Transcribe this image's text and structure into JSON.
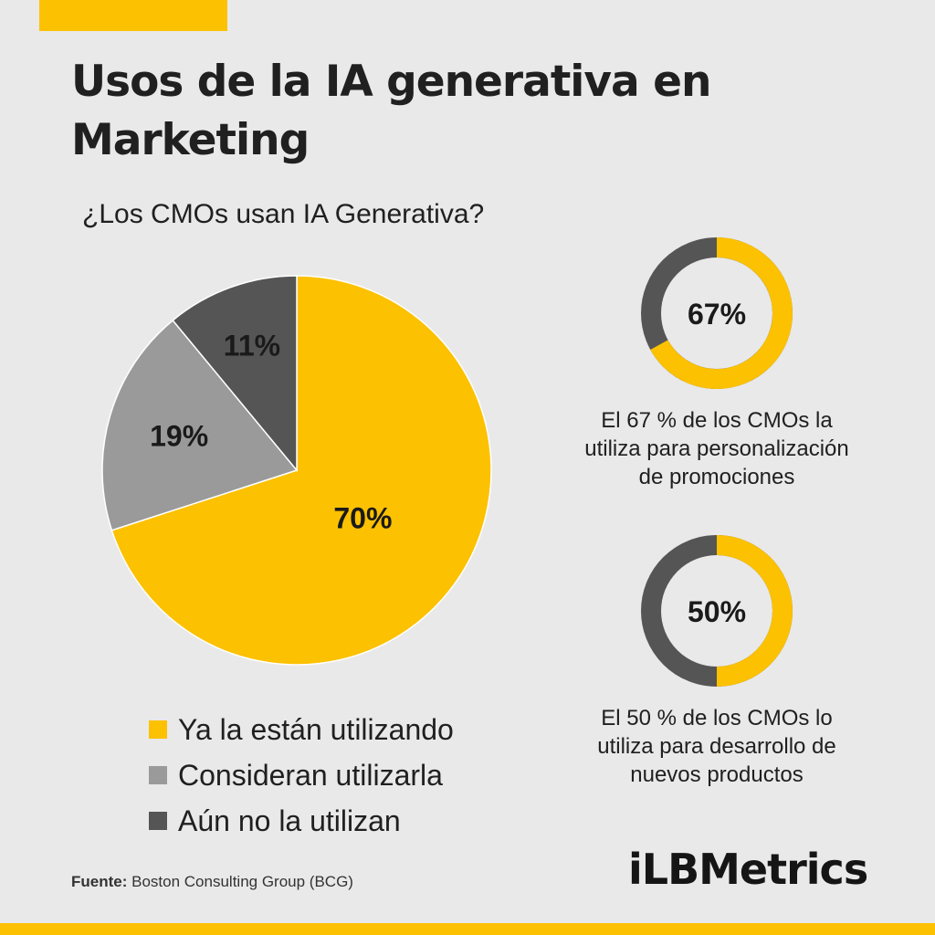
{
  "title": "Usos de la IA generativa en Marketing",
  "question": "¿Los CMOs usan IA Generativa?",
  "colors": {
    "accent": "#fcc100",
    "gray_light": "#9a9a9a",
    "gray_dark": "#555555",
    "background": "#e9e9e9"
  },
  "chart_data": [
    {
      "type": "pie",
      "title": "¿Los CMOs usan IA Generativa?",
      "unit": "%",
      "slices": [
        {
          "label": "Ya la están utilizando",
          "value": 70,
          "display": "70%",
          "color": "#fcc100"
        },
        {
          "label": "Consideran utilizarla",
          "value": 19,
          "display": "19%",
          "color": "#9a9a9a"
        },
        {
          "label": "Aún no la utilizan",
          "value": 11,
          "display": "11%",
          "color": "#555555"
        }
      ],
      "legend_position": "bottom"
    },
    {
      "type": "pie",
      "variant": "donut",
      "value": 67,
      "display": "67%",
      "caption": "El 67 % de los CMOs la utiliza para personalización de promociones",
      "colors": [
        "#fcc100",
        "#555555"
      ]
    },
    {
      "type": "pie",
      "variant": "donut",
      "value": 50,
      "display": "50%",
      "caption": "El 50 % de los CMOs lo utiliza para desarrollo de nuevos productos",
      "colors": [
        "#fcc100",
        "#555555"
      ]
    }
  ],
  "legend": [
    {
      "label": "Ya la están utilizando",
      "color": "#fcc100"
    },
    {
      "label": "Consideran utilizarla",
      "color": "#9a9a9a"
    },
    {
      "label": "Aún no la utilizan",
      "color": "#555555"
    }
  ],
  "source": {
    "label": "Fuente:",
    "text": "Boston Consulting Group (BCG)"
  },
  "logo": "iLBMetrics"
}
